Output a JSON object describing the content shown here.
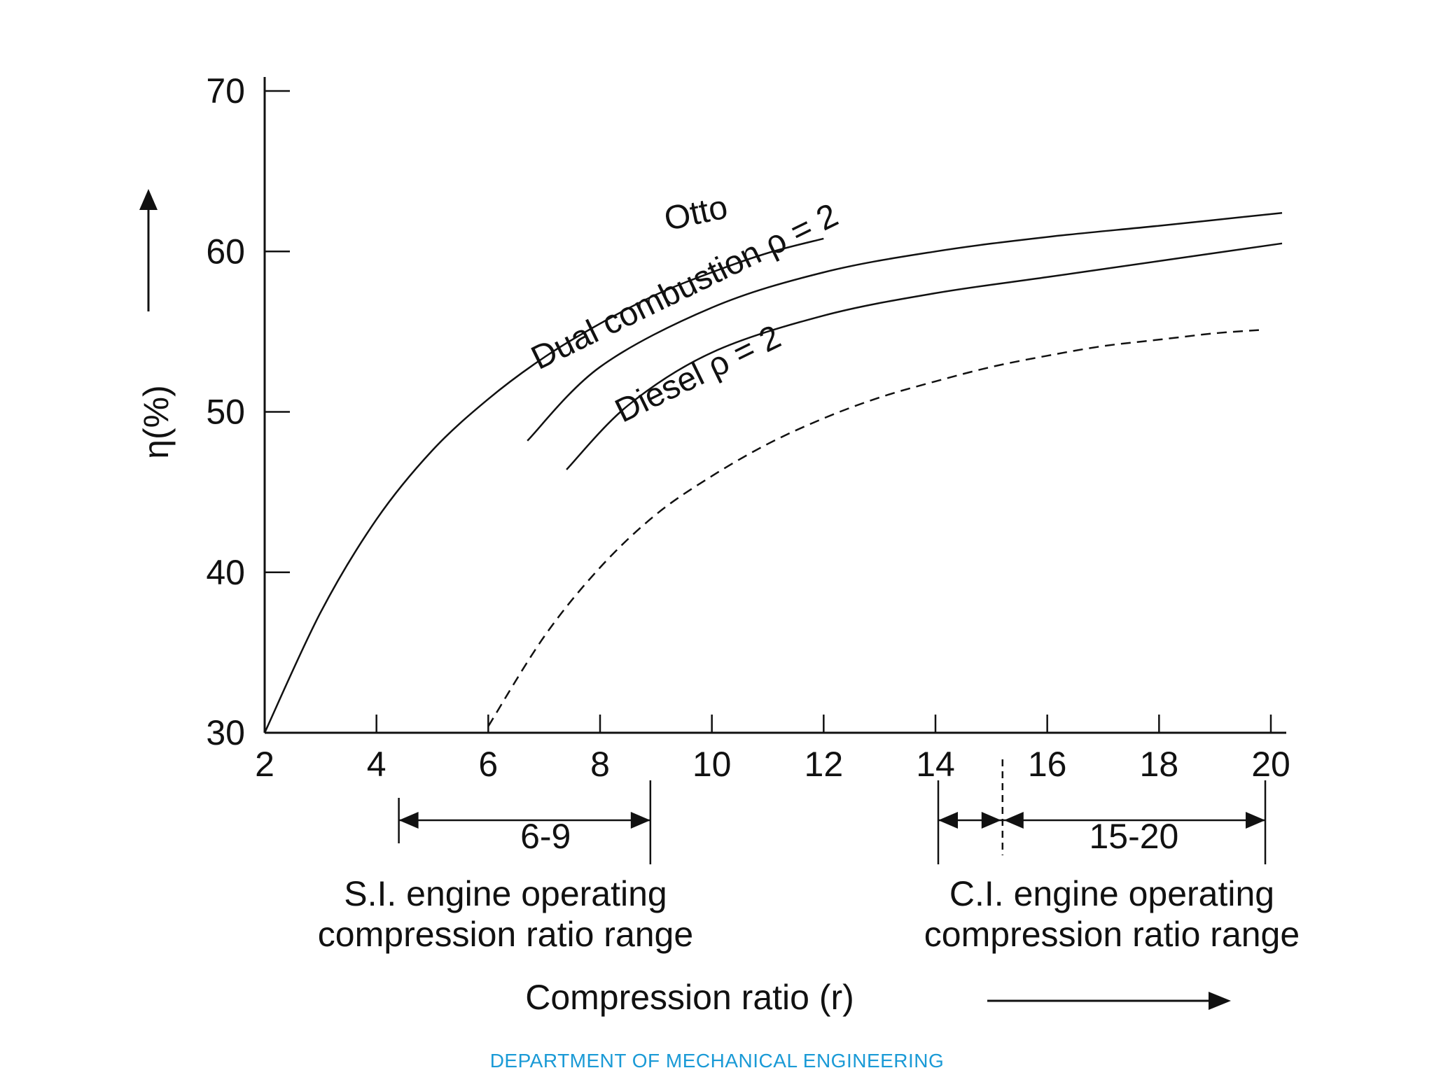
{
  "chart_data": {
    "type": "line",
    "title": "",
    "xlabel": "Compression ratio (r)",
    "ylabel": "η(%)",
    "xlim": [
      2,
      20
    ],
    "ylim": [
      30,
      70
    ],
    "x_ticks": [
      2,
      4,
      6,
      8,
      10,
      12,
      14,
      16,
      18,
      20
    ],
    "y_ticks": [
      30,
      40,
      50,
      60,
      70
    ],
    "series": [
      {
        "name": "Otto",
        "label": "Otto",
        "style": "solid",
        "x": [
          2,
          3,
          4,
          5,
          6,
          7,
          8,
          9,
          10,
          11,
          12
        ],
        "y": [
          30,
          37.5,
          43.3,
          47.6,
          50.8,
          53.4,
          55.5,
          57.3,
          58.7,
          59.9,
          60.8
        ]
      },
      {
        "name": "Dual combustion ρ = 2",
        "label": "Dual combustion  ρ = 2",
        "style": "solid",
        "x": [
          6.7,
          8,
          10,
          12,
          14,
          16,
          18,
          20.2
        ],
        "y": [
          48.2,
          52.8,
          56.5,
          58.7,
          60.0,
          60.9,
          61.6,
          62.4
        ]
      },
      {
        "name": "Diesel ρ = 2",
        "label": "Diesel ρ = 2",
        "style": "solid",
        "x": [
          7.4,
          8.5,
          10,
          12,
          14,
          16,
          18,
          20.2
        ],
        "y": [
          46.4,
          50.4,
          53.7,
          56.0,
          57.4,
          58.4,
          59.4,
          60.5
        ]
      },
      {
        "name": "Unlabeled dashed curve",
        "label": "",
        "style": "dashed",
        "x": [
          6,
          7,
          8,
          9,
          10,
          11,
          12,
          13,
          14,
          15,
          16,
          17,
          18,
          19,
          19.8
        ],
        "y": [
          30.4,
          36.0,
          40.3,
          43.6,
          46.0,
          48.0,
          49.6,
          50.9,
          51.9,
          52.8,
          53.5,
          54.1,
          54.5,
          54.9,
          55.1
        ]
      }
    ],
    "ranges": [
      {
        "name": "SI",
        "label": "6-9",
        "from": 4.4,
        "to": 8.9,
        "caption_line1": "S.I. engine operating",
        "caption_line2": "compression ratio range"
      },
      {
        "name": "CI",
        "label": "15-20",
        "from": 15.2,
        "to": 19.9,
        "caption_line1": "C.I. engine operating",
        "caption_line2": "compression ratio range"
      }
    ]
  },
  "footer": "DEPARTMENT OF MECHANICAL ENGINEERING",
  "colors": {
    "line": "#111111",
    "footer": "#1a9ad6"
  }
}
